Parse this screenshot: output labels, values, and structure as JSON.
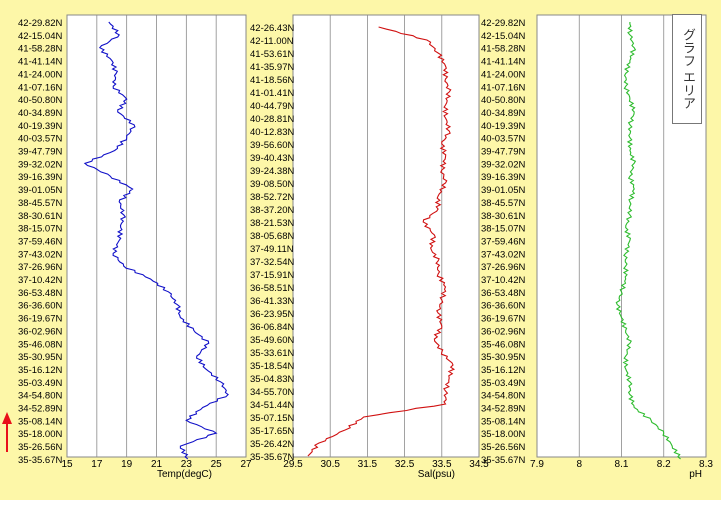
{
  "annotation": {
    "label": "グラフ エリア"
  },
  "colors": {
    "panel_bg": "#fdf7a8",
    "plot_bg": "#ffffff",
    "arrow": "#e8101a"
  },
  "latitude_ticks_left": [
    "42-29.82N",
    "42-15.04N",
    "41-58.28N",
    "41-41.14N",
    "41-24.00N",
    "41-07.16N",
    "40-50.80N",
    "40-34.89N",
    "40-19.39N",
    "40-03.57N",
    "39-47.79N",
    "39-32.02N",
    "39-16.39N",
    "39-01.05N",
    "38-45.57N",
    "38-30.61N",
    "38-15.07N",
    "37-59.46N",
    "37-43.02N",
    "37-26.96N",
    "37-10.42N",
    "36-53.48N",
    "36-36.60N",
    "36-19.67N",
    "36-02.96N",
    "35-46.08N",
    "35-30.95N",
    "35-16.12N",
    "35-03.49N",
    "34-54.80N",
    "34-52.89N",
    "35-08.14N",
    "35-18.00N",
    "35-26.56N",
    "35-35.67N"
  ],
  "latitude_ticks_middle": [
    "42-26.43N",
    "42-11.00N",
    "41-53.61N",
    "41-35.97N",
    "41-18.56N",
    "41-01.41N",
    "40-44.79N",
    "40-28.81N",
    "40-12.83N",
    "39-56.60N",
    "39-40.43N",
    "39-24.38N",
    "39-08.50N",
    "38-52.72N",
    "38-37.20N",
    "38-21.53N",
    "38-05.68N",
    "37-49.11N",
    "37-32.54N",
    "37-15.91N",
    "36-58.51N",
    "36-41.33N",
    "36-23.95N",
    "36-06.84N",
    "35-49.60N",
    "35-33.61N",
    "35-18.54N",
    "35-04.83N",
    "34-55.70N",
    "34-51.44N",
    "35-07.15N",
    "35-17.65N",
    "35-26.42N",
    "35-35.67N"
  ],
  "chart_data": [
    {
      "type": "line",
      "xlabel": "Temp(degC)",
      "xlim": [
        15,
        27
      ],
      "xticks": [
        "15",
        "17",
        "19",
        "21",
        "23",
        "25",
        "27"
      ],
      "color": "#1010c8",
      "y": "latitude_ticks_left",
      "x": [
        17.8,
        18.5,
        17.2,
        18.0,
        18.3,
        18.1,
        19.0,
        18.4,
        19.5,
        19.0,
        18.2,
        16.2,
        17.9,
        19.4,
        18.5,
        18.8,
        18.6,
        18.5,
        18.1,
        18.8,
        20.6,
        21.8,
        22.4,
        22.6,
        23.5,
        24.5,
        23.7,
        24.3,
        25.3,
        25.8,
        24.1,
        23.0,
        25.0,
        22.6,
        23.1
      ]
    },
    {
      "type": "line",
      "xlabel": "Sal(psu)",
      "xlim": [
        29.5,
        34.5
      ],
      "xticks": [
        "29.5",
        "30.5",
        "31.5",
        "32.5",
        "33.5",
        "34.5"
      ],
      "color": "#d01010",
      "y": "latitude_ticks_middle",
      "x": [
        31.8,
        33.1,
        33.4,
        33.6,
        33.6,
        33.7,
        33.6,
        33.6,
        33.7,
        33.5,
        33.6,
        33.5,
        33.6,
        33.4,
        33.4,
        33.0,
        33.3,
        33.2,
        33.4,
        33.4,
        33.6,
        33.5,
        33.4,
        33.5,
        33.3,
        33.5,
        33.8,
        33.7,
        33.6,
        33.6,
        31.4,
        30.9,
        30.2,
        29.9
      ]
    },
    {
      "type": "line",
      "xlabel": "pH",
      "xlim": [
        7.9,
        8.3
      ],
      "xticks": [
        "7.9",
        "8",
        "8.1",
        "8.2",
        "8.3"
      ],
      "color": "#2ebc2e",
      "y": "latitude_ticks_left",
      "x": [
        8.12,
        8.12,
        8.13,
        8.12,
        8.11,
        8.11,
        8.12,
        8.13,
        8.12,
        8.12,
        8.12,
        8.13,
        8.12,
        8.13,
        8.12,
        8.12,
        8.11,
        8.12,
        8.11,
        8.11,
        8.11,
        8.1,
        8.09,
        8.1,
        8.11,
        8.12,
        8.11,
        8.11,
        8.12,
        8.12,
        8.13,
        8.17,
        8.2,
        8.22,
        8.24
      ]
    }
  ]
}
